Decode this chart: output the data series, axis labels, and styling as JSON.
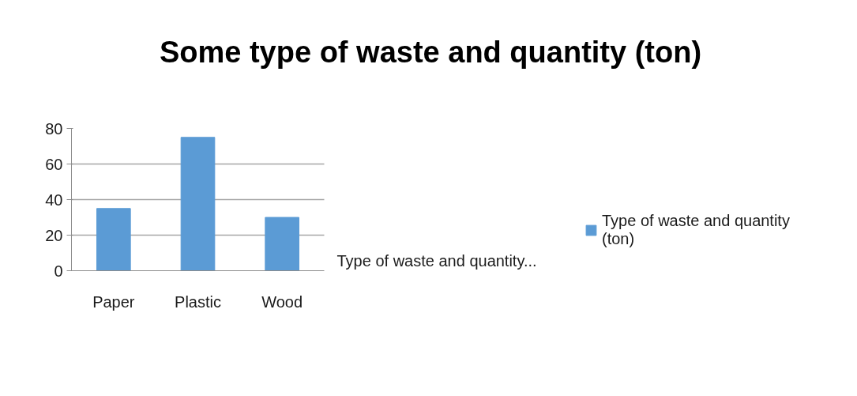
{
  "chart_data": {
    "type": "bar",
    "title": "Some type of waste and quantity (ton)",
    "categories": [
      "Paper",
      "Plastic",
      "Wood"
    ],
    "series": [
      {
        "name": "Type of waste and quantity (ton)",
        "color": "#5b9bd5",
        "values": [
          35,
          75,
          30
        ]
      }
    ],
    "ylim": [
      0,
      80
    ],
    "yticks": [
      0,
      20,
      40,
      60,
      80
    ],
    "grid": "y",
    "legend": "right",
    "annotations": [
      "Type of waste and quantity..."
    ]
  }
}
